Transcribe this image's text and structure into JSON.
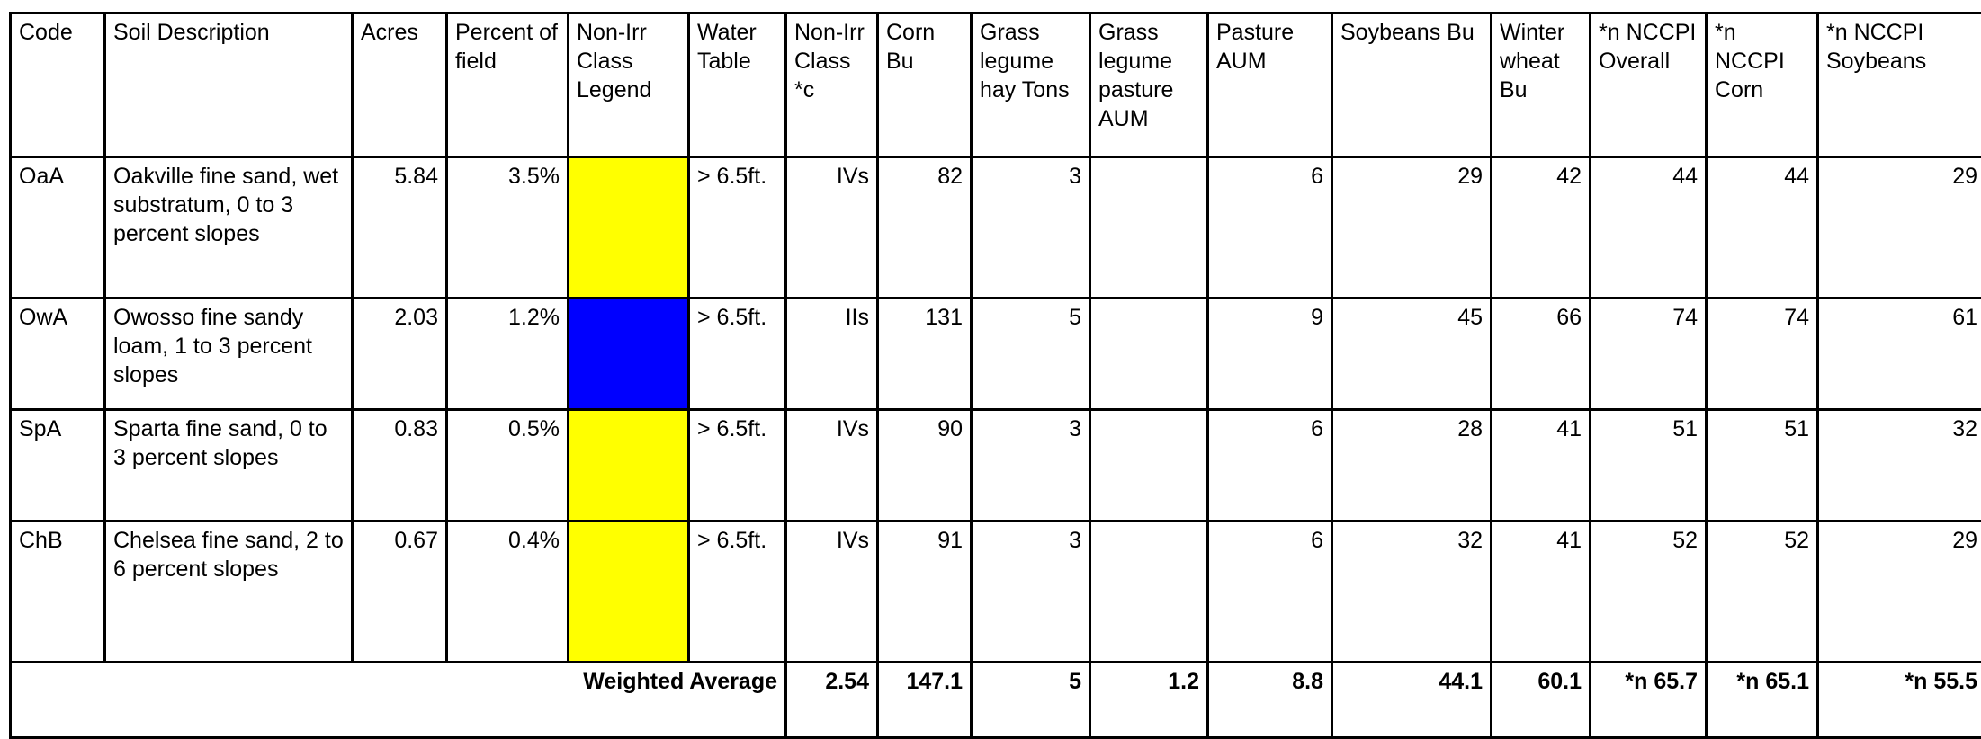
{
  "columns": [
    "Code",
    "Soil Description",
    "Acres",
    "Percent of field",
    "Non-Irr Class Legend",
    "Water Table",
    "Non-Irr Class *c",
    "Corn Bu",
    "Grass legume hay Tons",
    "Grass legume pasture AUM",
    "Pasture AUM",
    "Soybeans Bu",
    "Winter wheat Bu",
    "*n NCCPI Overall",
    "*n NCCPI Corn",
    "*n NCCPI Soybeans"
  ],
  "rows": [
    {
      "code": "OaA",
      "description": "Oakville fine sand, wet substratum, 0 to 3 percent slopes",
      "acres": "5.84",
      "percent": "3.5%",
      "legend_color": "#ffff00",
      "water_table": "> 6.5ft.",
      "class": "IVs",
      "corn": "82",
      "hay": "3",
      "grass_pasture": "",
      "pasture": "6",
      "soybeans": "29",
      "wheat": "42",
      "nccpi_overall": "44",
      "nccpi_corn": "44",
      "nccpi_soybeans": "29"
    },
    {
      "code": "OwA",
      "description": "Owosso fine sandy loam, 1 to 3 percent slopes",
      "acres": "2.03",
      "percent": "1.2%",
      "legend_color": "#0000ff",
      "water_table": "> 6.5ft.",
      "class": "IIs",
      "corn": "131",
      "hay": "5",
      "grass_pasture": "",
      "pasture": "9",
      "soybeans": "45",
      "wheat": "66",
      "nccpi_overall": "74",
      "nccpi_corn": "74",
      "nccpi_soybeans": "61"
    },
    {
      "code": "SpA",
      "description": "Sparta fine sand, 0 to 3 percent slopes",
      "acres": "0.83",
      "percent": "0.5%",
      "legend_color": "#ffff00",
      "water_table": "> 6.5ft.",
      "class": "IVs",
      "corn": "90",
      "hay": "3",
      "grass_pasture": "",
      "pasture": "6",
      "soybeans": "28",
      "wheat": "41",
      "nccpi_overall": "51",
      "nccpi_corn": "51",
      "nccpi_soybeans": "32"
    },
    {
      "code": "ChB",
      "description": "Chelsea fine sand, 2 to 6 percent slopes",
      "acres": "0.67",
      "percent": "0.4%",
      "legend_color": "#ffff00",
      "water_table": "> 6.5ft.",
      "class": "IVs",
      "corn": "91",
      "hay": "3",
      "grass_pasture": "",
      "pasture": "6",
      "soybeans": "32",
      "wheat": "41",
      "nccpi_overall": "52",
      "nccpi_corn": "52",
      "nccpi_soybeans": "29"
    }
  ],
  "weighted": {
    "label": "Weighted Average",
    "class": "2.54",
    "corn": "147.1",
    "hay": "5",
    "grass_pasture": "1.2",
    "pasture": "8.8",
    "soybeans": "44.1",
    "wheat": "60.1",
    "nccpi_overall": "*n 65.7",
    "nccpi_corn": "*n 65.1",
    "nccpi_soybeans": "*n 55.5"
  }
}
